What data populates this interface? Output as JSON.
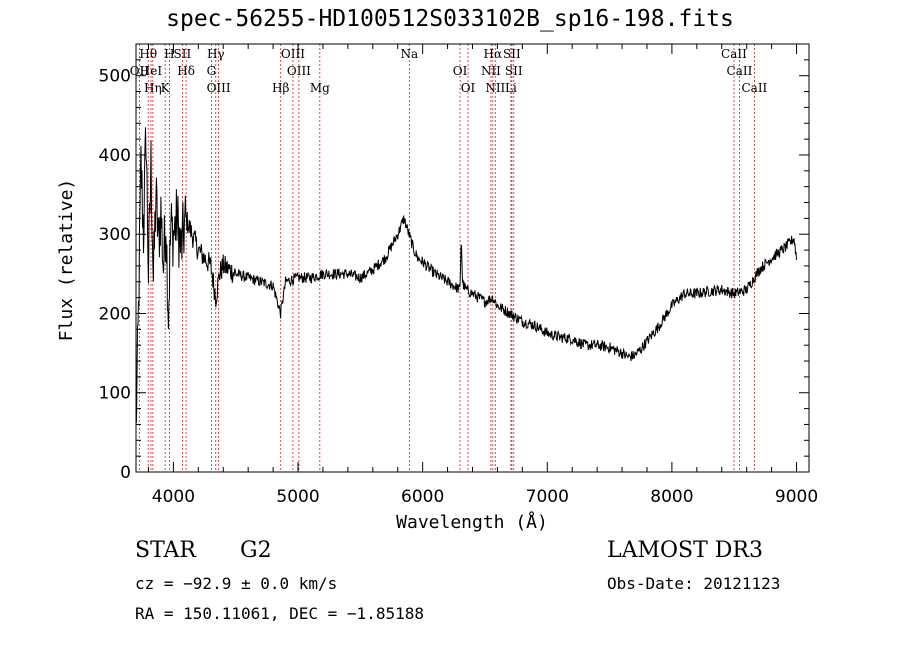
{
  "chart_data": {
    "type": "line",
    "title": "spec-56255-HD100512S033102B_sp16-198.fits",
    "xlabel": "Wavelength (Å)",
    "ylabel": "Flux (relative)",
    "xlim": [
      3700,
      9100
    ],
    "ylim": [
      0,
      540
    ],
    "x_ticks": [
      4000,
      5000,
      6000,
      7000,
      8000,
      9000
    ],
    "y_ticks": [
      0,
      100,
      200,
      300,
      400,
      500
    ],
    "grid": false,
    "series": [
      {
        "name": "flux",
        "x": [
          3700,
          3720,
          3740,
          3760,
          3780,
          3800,
          3820,
          3840,
          3860,
          3880,
          3900,
          3920,
          3940,
          3960,
          3980,
          4000,
          4030,
          4060,
          4100,
          4150,
          4200,
          4250,
          4300,
          4340,
          4370,
          4400,
          4450,
          4500,
          4600,
          4700,
          4800,
          4860,
          4900,
          5000,
          5100,
          5200,
          5300,
          5400,
          5500,
          5600,
          5700,
          5800,
          5850,
          5890,
          5930,
          5960,
          6000,
          6100,
          6200,
          6300,
          6310,
          6320,
          6330,
          6350,
          6400,
          6500,
          6563,
          6600,
          6700,
          6800,
          6900,
          7000,
          7100,
          7200,
          7300,
          7400,
          7500,
          7600,
          7650,
          7700,
          7750,
          7800,
          7900,
          8000,
          8100,
          8200,
          8300,
          8400,
          8500,
          8600,
          8700,
          8800,
          8900,
          8950,
          8980,
          9000
        ],
        "y": [
          50,
          200,
          390,
          300,
          430,
          250,
          390,
          240,
          350,
          290,
          330,
          260,
          320,
          200,
          310,
          300,
          320,
          280,
          320,
          300,
          280,
          270,
          260,
          220,
          250,
          260,
          255,
          250,
          245,
          240,
          235,
          200,
          240,
          245,
          245,
          250,
          250,
          250,
          245,
          255,
          270,
          300,
          320,
          300,
          280,
          270,
          265,
          250,
          240,
          230,
          300,
          240,
          235,
          230,
          225,
          215,
          220,
          210,
          200,
          190,
          185,
          175,
          170,
          168,
          160,
          160,
          157,
          150,
          145,
          147,
          155,
          165,
          185,
          210,
          225,
          225,
          228,
          230,
          225,
          230,
          255,
          270,
          282,
          290,
          295,
          270
        ]
      }
    ],
    "spectral_lines": [
      {
        "name": "Hθ",
        "wavelength": 3798
      },
      {
        "name": "HeI",
        "wavelength": 3820
      },
      {
        "name": "K",
        "wavelength": 3934
      },
      {
        "name": "SII",
        "wavelength": 4072
      },
      {
        "name": "Hδ",
        "wavelength": 4102
      },
      {
        "name": "Hη",
        "wavelength": 3835
      },
      {
        "name": "H",
        "wavelength": 3968
      },
      {
        "name": "OII",
        "wavelength": 3727
      },
      {
        "name": "OIII",
        "wavelength": 4363
      },
      {
        "name": "Hγ",
        "wavelength": 4340
      },
      {
        "name": "G",
        "wavelength": 4305
      },
      {
        "name": "Hβ",
        "wavelength": 4861
      },
      {
        "name": "OIII",
        "wavelength": 4959
      },
      {
        "name": "OIII",
        "wavelength": 5007
      },
      {
        "name": "Mg",
        "wavelength": 5175
      },
      {
        "name": "Na",
        "wavelength": 5893
      },
      {
        "name": "OI",
        "wavelength": 6300
      },
      {
        "name": "OI",
        "wavelength": 6364
      },
      {
        "name": "Hα",
        "wavelength": 6563
      },
      {
        "name": "NII",
        "wavelength": 6548
      },
      {
        "name": "NII",
        "wavelength": 6583
      },
      {
        "name": "SII",
        "wavelength": 6716
      },
      {
        "name": "SII",
        "wavelength": 6731
      },
      {
        "name": "Li",
        "wavelength": 6708
      },
      {
        "name": "CaII",
        "wavelength": 8498
      },
      {
        "name": "CaII",
        "wavelength": 8542
      },
      {
        "name": "CaII",
        "wavelength": 8662
      }
    ]
  },
  "info": {
    "type_label": "STAR",
    "subclass": "G2",
    "survey": "LAMOST DR3",
    "cz": "cz = −92.9 ± 0.0 km/s",
    "obs_date": "Obs-Date: 20121123",
    "radec": "RA = 150.11061, DEC =  −1.85188"
  },
  "colors": {
    "line": "#000000",
    "marker": "#cc2222"
  }
}
